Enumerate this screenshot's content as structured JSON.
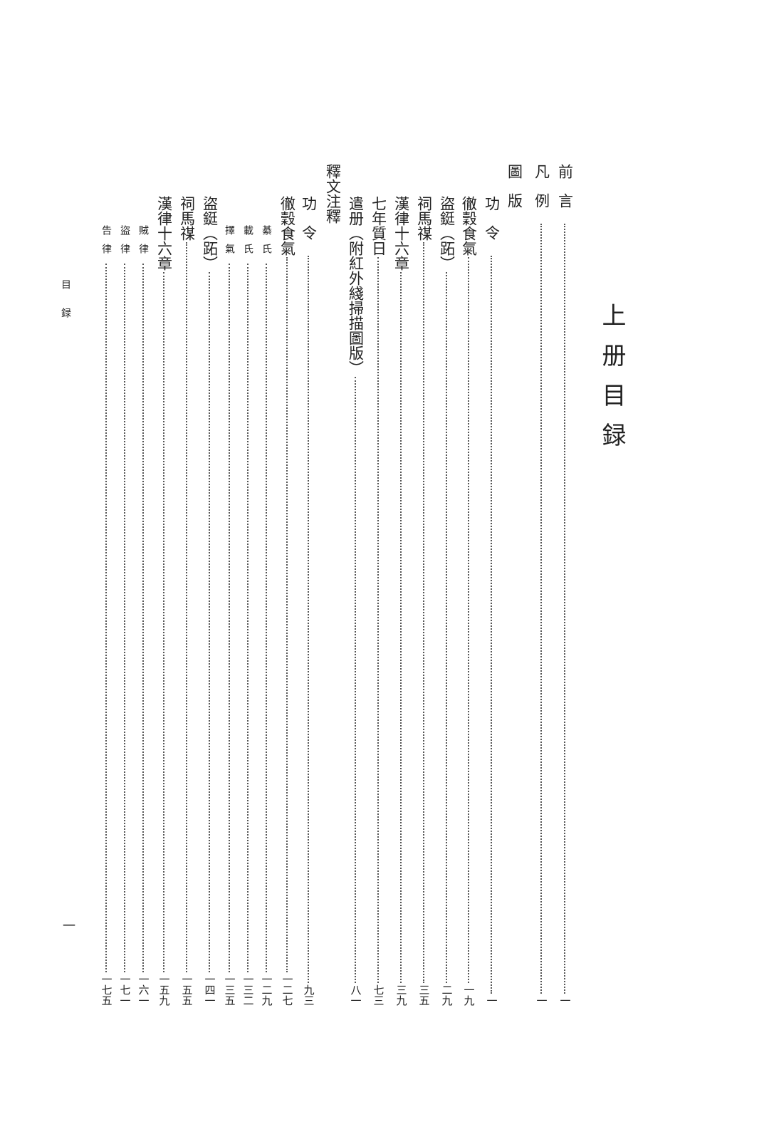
{
  "title": "上册目録",
  "side_header": "目録",
  "page_number": "一",
  "entries": [
    {
      "text": "前言",
      "page": "一",
      "level": 1,
      "spaced": true
    },
    {
      "text": "凡例",
      "page": "一",
      "level": 1,
      "spaced": true
    },
    {
      "text": "圖版",
      "page": "",
      "level": 1,
      "spaced": true
    },
    {
      "text": "功令",
      "page": "一",
      "level": 2,
      "spaced": true
    },
    {
      "text": "徹穀食氣",
      "page": "一九",
      "level": 2
    },
    {
      "text": "盜鋌（跖）",
      "page": "二九",
      "level": 2
    },
    {
      "text": "祠馬禖",
      "page": "三五",
      "level": 2
    },
    {
      "text": "漢律十六章",
      "page": "三九",
      "level": 2
    },
    {
      "text": "七年質日",
      "page": "七三",
      "level": 2
    },
    {
      "text": "遣册（附紅外綫掃描圖版）",
      "page": "八一",
      "level": 2
    },
    {
      "text": "釋文注釋",
      "page": "",
      "level": 1
    },
    {
      "text": "功令",
      "page": "九三",
      "level": 2,
      "spaced": true
    },
    {
      "text": "徹穀食氣",
      "page": "一二七",
      "level": 2
    },
    {
      "text": "綦氏",
      "page": "一二九",
      "level": 3
    },
    {
      "text": "載氏",
      "page": "一三二",
      "level": 3
    },
    {
      "text": "擇氣",
      "page": "一三五",
      "level": 3
    },
    {
      "text": "盜鋌（跖）",
      "page": "一四一",
      "level": 2
    },
    {
      "text": "祠馬禖",
      "page": "一五五",
      "level": 2
    },
    {
      "text": "漢律十六章",
      "page": "一五九",
      "level": 2
    },
    {
      "text": "賊律",
      "page": "一六一",
      "level": 3
    },
    {
      "text": "盜律",
      "page": "一七一",
      "level": 3
    },
    {
      "text": "告律",
      "page": "一七五",
      "level": 3
    }
  ]
}
